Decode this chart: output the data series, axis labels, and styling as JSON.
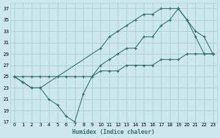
{
  "xlabel": "Humidex (Indice chaleur)",
  "ylabel": "",
  "bg_color": "#cce8ed",
  "grid_color": "#aacdd4",
  "line_color": "#2e7068",
  "xlim": [
    -0.5,
    23.5
  ],
  "ylim": [
    17,
    38
  ],
  "yticks": [
    17,
    19,
    21,
    23,
    25,
    27,
    29,
    31,
    33,
    35,
    37
  ],
  "xticks": [
    0,
    1,
    2,
    3,
    4,
    5,
    6,
    7,
    8,
    9,
    10,
    11,
    12,
    13,
    14,
    15,
    16,
    17,
    18,
    19,
    20,
    21,
    22,
    23
  ],
  "line1_x": [
    0,
    1,
    2,
    3,
    4,
    5,
    6,
    7,
    8,
    9,
    10,
    11,
    12,
    13,
    14,
    15,
    16,
    17,
    18,
    19,
    20,
    21,
    22,
    23
  ],
  "line1_y": [
    25,
    24,
    23,
    23,
    21,
    20,
    18,
    17,
    22,
    25,
    27,
    28,
    29,
    30,
    30,
    32,
    32,
    34,
    35,
    37,
    35,
    32,
    29,
    29
  ],
  "line2_x": [
    0,
    1,
    2,
    3,
    10,
    11,
    12,
    13,
    14,
    15,
    16,
    17,
    18,
    19,
    20,
    21,
    22,
    23
  ],
  "line2_y": [
    25,
    24,
    23,
    23,
    30,
    32,
    33,
    34,
    35,
    36,
    36,
    37,
    37,
    37,
    35,
    33,
    32,
    29
  ],
  "line3_x": [
    0,
    1,
    2,
    3,
    4,
    5,
    6,
    7,
    8,
    9,
    10,
    11,
    12,
    13,
    14,
    15,
    16,
    17,
    18,
    19,
    20,
    21,
    22,
    23
  ],
  "line3_y": [
    25,
    25,
    25,
    25,
    25,
    25,
    25,
    25,
    25,
    25,
    26,
    26,
    26,
    27,
    27,
    27,
    27,
    28,
    28,
    28,
    29,
    29,
    29,
    29
  ]
}
